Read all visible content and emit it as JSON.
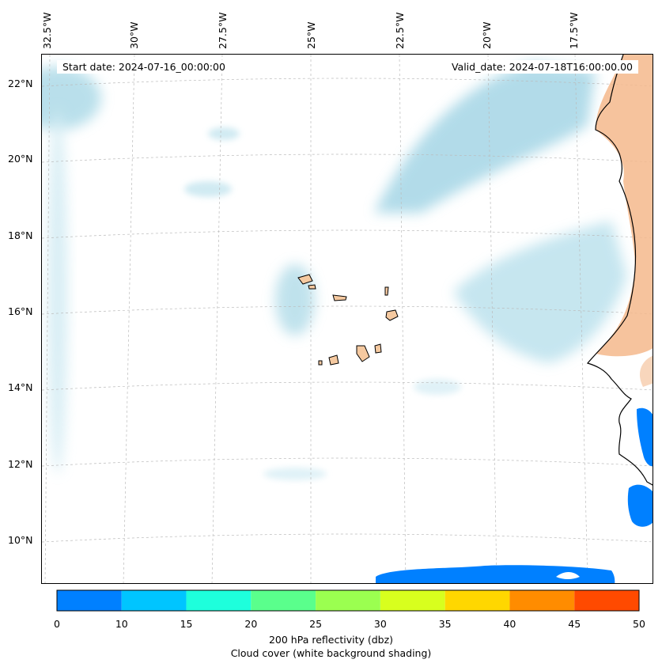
{
  "map": {
    "start_date": "Start date: 2024-07-16_00:00:00",
    "valid_date": "Valid_date: 2024-07-18T16:00:00.00",
    "lon_labels": [
      "32.5°W",
      "30°W",
      "27.5°W",
      "25°W",
      "22.5°W",
      "20°W",
      "17.5°W"
    ],
    "lat_labels": [
      "22°N",
      "20°N",
      "18°N",
      "16°N",
      "14°N",
      "12°N",
      "10°N"
    ]
  },
  "colorbar": {
    "ticks": [
      "0",
      "10",
      "15",
      "20",
      "25",
      "30",
      "35",
      "40",
      "45",
      "50"
    ],
    "colors": [
      "#0080ff",
      "#00c5ff",
      "#1effdc",
      "#5aff8c",
      "#9bff50",
      "#d8ff1e",
      "#ffd700",
      "#ff8c00",
      "#ff4a00"
    ],
    "label_line1": "200 hPa reflectivity (dbz)",
    "label_line2": "Cloud cover (white background shading)"
  }
}
